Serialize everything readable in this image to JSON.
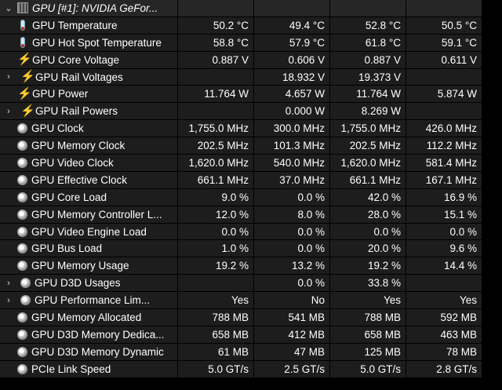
{
  "header": {
    "expander": "⌄",
    "title": "GPU [#1]: NVIDIA GeFor..."
  },
  "rows": [
    {
      "icon": "thermometer-icon",
      "indent": false,
      "expand": "",
      "name": "GPU Temperature",
      "values": [
        "50.2 °C",
        "49.4 °C",
        "52.8 °C",
        "50.5 °C"
      ]
    },
    {
      "icon": "thermometer-icon",
      "indent": false,
      "expand": "",
      "name": "GPU Hot Spot Temperature",
      "values": [
        "58.8 °C",
        "57.9 °C",
        "61.8 °C",
        "59.1 °C"
      ]
    },
    {
      "icon": "lightning-icon",
      "indent": false,
      "expand": "",
      "name": "GPU Core Voltage",
      "values": [
        "0.887 V",
        "0.606 V",
        "0.887 V",
        "0.611 V"
      ]
    },
    {
      "icon": "lightning-icon",
      "indent": true,
      "expand": "›",
      "name": "GPU Rail Voltages",
      "values": [
        "",
        "18.932 V",
        "19.373 V",
        ""
      ]
    },
    {
      "icon": "lightning-icon",
      "indent": false,
      "expand": "",
      "name": "GPU Power",
      "values": [
        "11.764 W",
        "4.657 W",
        "11.764 W",
        "5.874 W"
      ]
    },
    {
      "icon": "lightning-icon",
      "indent": true,
      "expand": "›",
      "name": "GPU Rail Powers",
      "values": [
        "",
        "0.000 W",
        "8.269 W",
        ""
      ]
    },
    {
      "icon": "clock-icon",
      "indent": false,
      "expand": "",
      "name": "GPU Clock",
      "values": [
        "1,755.0 MHz",
        "300.0 MHz",
        "1,755.0 MHz",
        "426.0 MHz"
      ]
    },
    {
      "icon": "clock-icon",
      "indent": false,
      "expand": "",
      "name": "GPU Memory Clock",
      "values": [
        "202.5 MHz",
        "101.3 MHz",
        "202.5 MHz",
        "112.2 MHz"
      ]
    },
    {
      "icon": "clock-icon",
      "indent": false,
      "expand": "",
      "name": "GPU Video Clock",
      "values": [
        "1,620.0 MHz",
        "540.0 MHz",
        "1,620.0 MHz",
        "581.4 MHz"
      ]
    },
    {
      "icon": "clock-icon",
      "indent": false,
      "expand": "",
      "name": "GPU Effective Clock",
      "values": [
        "661.1 MHz",
        "37.0 MHz",
        "661.1 MHz",
        "167.1 MHz"
      ]
    },
    {
      "icon": "clock-icon",
      "indent": false,
      "expand": "",
      "name": "GPU Core Load",
      "values": [
        "9.0 %",
        "0.0 %",
        "42.0 %",
        "16.9 %"
      ]
    },
    {
      "icon": "clock-icon",
      "indent": false,
      "expand": "",
      "name": "GPU Memory Controller L...",
      "values": [
        "12.0 %",
        "8.0 %",
        "28.0 %",
        "15.1 %"
      ]
    },
    {
      "icon": "clock-icon",
      "indent": false,
      "expand": "",
      "name": "GPU Video Engine Load",
      "values": [
        "0.0 %",
        "0.0 %",
        "0.0 %",
        "0.0 %"
      ]
    },
    {
      "icon": "clock-icon",
      "indent": false,
      "expand": "",
      "name": "GPU Bus Load",
      "values": [
        "1.0 %",
        "0.0 %",
        "20.0 %",
        "9.6 %"
      ]
    },
    {
      "icon": "clock-icon",
      "indent": false,
      "expand": "",
      "name": "GPU Memory Usage",
      "values": [
        "19.2 %",
        "13.2 %",
        "19.2 %",
        "14.4 %"
      ]
    },
    {
      "icon": "clock-icon",
      "indent": true,
      "expand": "›",
      "name": "GPU D3D Usages",
      "values": [
        "",
        "0.0 %",
        "33.8 %",
        ""
      ]
    },
    {
      "icon": "clock-icon",
      "indent": true,
      "expand": "›",
      "name": "GPU Performance Lim...",
      "values": [
        "Yes",
        "No",
        "Yes",
        "Yes"
      ]
    },
    {
      "icon": "clock-icon",
      "indent": false,
      "expand": "",
      "name": "GPU Memory Allocated",
      "values": [
        "788 MB",
        "541 MB",
        "788 MB",
        "592 MB"
      ]
    },
    {
      "icon": "clock-icon",
      "indent": false,
      "expand": "",
      "name": "GPU D3D Memory Dedica...",
      "values": [
        "658 MB",
        "412 MB",
        "658 MB",
        "463 MB"
      ]
    },
    {
      "icon": "clock-icon",
      "indent": false,
      "expand": "",
      "name": "GPU D3D Memory Dynamic",
      "values": [
        "61 MB",
        "47 MB",
        "125 MB",
        "78 MB"
      ]
    },
    {
      "icon": "clock-icon",
      "indent": false,
      "expand": "",
      "name": "PCIe Link Speed",
      "values": [
        "5.0 GT/s",
        "2.5 GT/s",
        "5.0 GT/s",
        "2.8 GT/s"
      ]
    }
  ]
}
